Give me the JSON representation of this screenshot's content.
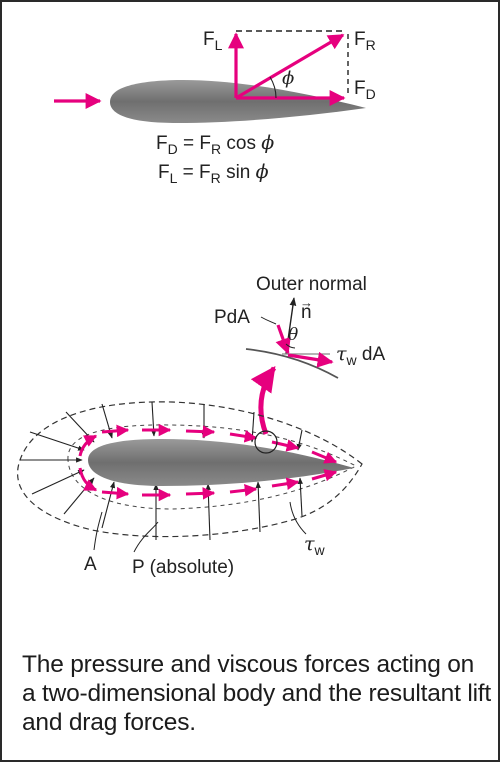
{
  "top": {
    "lift_symbol": "F",
    "lift_sub": "L",
    "result_symbol": "F",
    "result_sub": "R",
    "drag_symbol": "F",
    "drag_sub": "D",
    "angle_symbol": "ϕ",
    "equation_drag": {
      "lhs": "F",
      "lhs_sub": "D",
      "mid": " = F",
      "mid_sub": "R",
      "rhs": " cos ",
      "greek": "ϕ"
    },
    "equation_lift": {
      "lhs": "F",
      "lhs_sub": "L",
      "mid": " = F",
      "mid_sub": "R",
      "rhs": " sin ",
      "greek": "ϕ"
    }
  },
  "detail": {
    "outer_normal": "Outer normal",
    "normal_vector": "n",
    "vector_arrow": "→",
    "pressure_force": "PdA",
    "theta": "θ",
    "tau": "τ",
    "tau_sub": "w",
    "shear_force_suffix": " dA"
  },
  "bottom": {
    "label_a": "A",
    "label_p": "P (absolute)",
    "tau": "τ",
    "tau_sub": "w"
  },
  "caption": "The pressure and viscous forces acting on a two-dimensional body and the resultant lift and drag forces.",
  "colors": {
    "accent": "#e6007e",
    "body": "#7d7d7d",
    "line": "#222222"
  }
}
